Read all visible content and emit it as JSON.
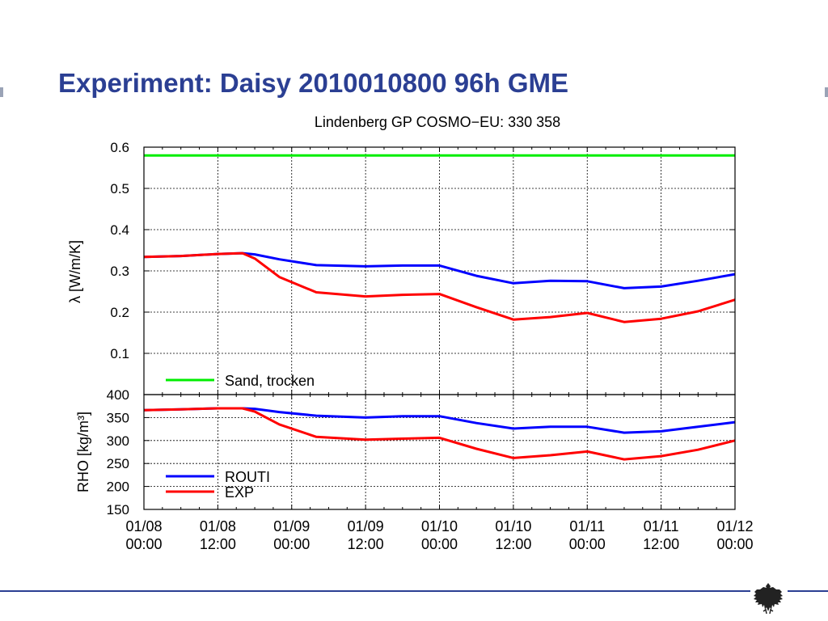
{
  "slide": {
    "title": "Experiment: Daisy 2010010800 96h GME"
  },
  "chart_data": [
    {
      "type": "line",
      "title": "Lindenberg GP COSMO−EU: 330 358",
      "ylabel": "λ [W/m/K]",
      "ylim": [
        0,
        0.6
      ],
      "yticks": [
        "0.1",
        "0.2",
        "0.3",
        "0.4",
        "0.5",
        "0.6"
      ],
      "grid": true,
      "legend_position": "bottom-left",
      "x": [
        0,
        6,
        12,
        16,
        18,
        22,
        28,
        36,
        42,
        48,
        54,
        60,
        66,
        72,
        78,
        84,
        90,
        96
      ],
      "series": [
        {
          "name": "ROUTI",
          "color": "#0000ff",
          "values": [
            0.334,
            0.336,
            0.341,
            0.343,
            0.34,
            0.328,
            0.314,
            0.311,
            0.313,
            0.313,
            0.288,
            0.27,
            0.276,
            0.275,
            0.258,
            0.262,
            0.276,
            0.292
          ]
        },
        {
          "name": "EXP",
          "color": "#ff0000",
          "values": [
            0.334,
            0.336,
            0.341,
            0.343,
            0.33,
            0.285,
            0.248,
            0.238,
            0.242,
            0.244,
            0.212,
            0.182,
            0.188,
            0.198,
            0.176,
            0.184,
            0.202,
            0.23
          ]
        },
        {
          "name": "Sand, trocken",
          "color": "#00ee00",
          "values": [
            0.58,
            0.58,
            0.58,
            0.58,
            0.58,
            0.58,
            0.58,
            0.58,
            0.58,
            0.58,
            0.58,
            0.58,
            0.58,
            0.58,
            0.58,
            0.58,
            0.58,
            0.58
          ]
        }
      ],
      "legend": [
        "Sand, trocken"
      ]
    },
    {
      "type": "line",
      "ylabel": "RHO [kg/m³]",
      "ylim": [
        150,
        400
      ],
      "yticks": [
        "150",
        "200",
        "250",
        "300",
        "350",
        "400"
      ],
      "grid": true,
      "legend_position": "bottom-left",
      "x": [
        0,
        6,
        12,
        16,
        18,
        22,
        28,
        36,
        42,
        48,
        54,
        60,
        66,
        72,
        78,
        84,
        90,
        96
      ],
      "series": [
        {
          "name": "ROUTI",
          "color": "#0000ff",
          "values": [
            366,
            368,
            370,
            370,
            369,
            362,
            354,
            350,
            353,
            353,
            338,
            326,
            330,
            330,
            317,
            320,
            330,
            340
          ]
        },
        {
          "name": "EXP",
          "color": "#ff0000",
          "values": [
            366,
            368,
            370,
            370,
            363,
            335,
            308,
            302,
            304,
            306,
            282,
            262,
            268,
            276,
            259,
            266,
            280,
            300
          ]
        }
      ],
      "legend": [
        "ROUTI",
        "EXP"
      ]
    }
  ],
  "x_axis": {
    "ticks": [
      {
        "date": "01/08",
        "time": "00:00"
      },
      {
        "date": "01/08",
        "time": "12:00"
      },
      {
        "date": "01/09",
        "time": "00:00"
      },
      {
        "date": "01/09",
        "time": "12:00"
      },
      {
        "date": "01/10",
        "time": "00:00"
      },
      {
        "date": "01/10",
        "time": "12:00"
      },
      {
        "date": "01/11",
        "time": "00:00"
      },
      {
        "date": "01/11",
        "time": "12:00"
      },
      {
        "date": "01/12",
        "time": "00:00"
      }
    ],
    "range": [
      0,
      96
    ]
  }
}
